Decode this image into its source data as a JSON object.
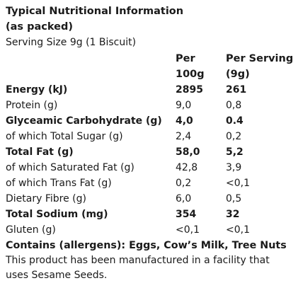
{
  "title_line1": "Typical Nutritional Information",
  "title_line2": "(as packed)",
  "serving": "Serving Size 9g (1 Biscuit)",
  "columns": {
    "per100_line1": "Per",
    "per100_line2": "100g",
    "perserving_line1": "Per Serving",
    "perserving_line2": "(9g)"
  },
  "rows": [
    {
      "label": "Energy (kJ)",
      "per100": "2895",
      "perserving": "261",
      "bold": true
    },
    {
      "label": "Protein (g)",
      "per100": "9,0",
      "perserving": "0,8",
      "bold": false
    },
    {
      "label": "Glyceamic Carbohydrate (g)",
      "per100": "4,0",
      "perserving": "0.4",
      "bold": true
    },
    {
      "label": "of which Total Sugar (g)",
      "per100": "2,4",
      "perserving": "0,2",
      "bold": false
    },
    {
      "label": "Total Fat (g)",
      "per100": "58,0",
      "perserving": "5,2",
      "bold": true
    },
    {
      "label": "of which Saturated Fat (g)",
      "per100": "42,8",
      "perserving": "3,9",
      "bold": false
    },
    {
      "label": "of which Trans Fat (g)",
      "per100": "0,2",
      "perserving": "<0,1",
      "bold": false
    },
    {
      "label": "Dietary Fibre (g)",
      "per100": "6,0",
      "perserving": "0,5",
      "bold": false
    },
    {
      "label": "Total Sodium (mg)",
      "per100": "354",
      "perserving": "32",
      "bold": true
    },
    {
      "label": "Gluten (g)",
      "per100": "<0,1",
      "perserving": "<0,1",
      "bold": false
    }
  ],
  "allergens": "Contains (allergens): Eggs, Cow’s Milk, Tree Nuts",
  "note": "This product has been manufactured in a facility that uses Sesame Seeds."
}
